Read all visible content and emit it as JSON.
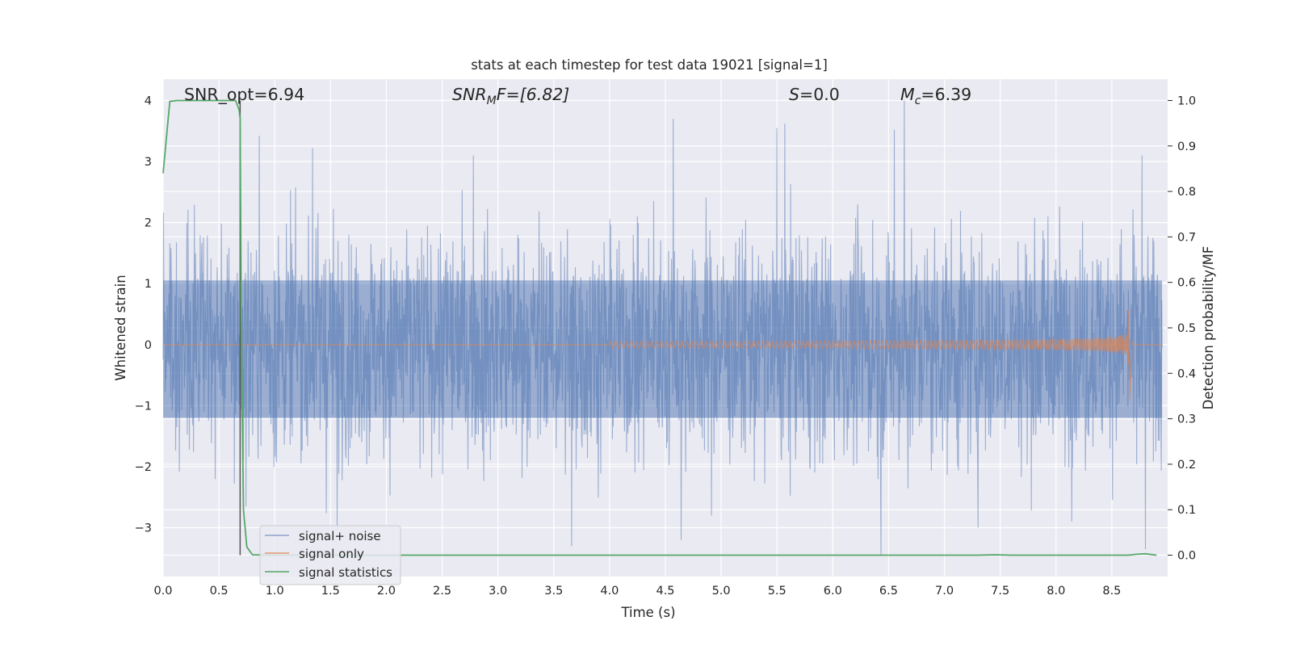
{
  "chart_data": {
    "type": "line",
    "title": "stats at each timestep for test data 19021 [signal=1]",
    "xlabel": "Time (s)",
    "ylabel": "Whitened strain",
    "ylabel_right": "Detection probability/MF",
    "xlim": [
      0.0,
      9.0
    ],
    "ylim": [
      -3.8,
      4.35
    ],
    "ylim_right": [
      -0.047,
      1.047
    ],
    "x_ticks": [
      0.0,
      0.5,
      1.0,
      1.5,
      2.0,
      2.5,
      3.0,
      3.5,
      4.0,
      4.5,
      5.0,
      5.5,
      6.0,
      6.5,
      7.0,
      7.5,
      8.0,
      8.5
    ],
    "x_tick_labels": [
      "0.0",
      "0.5",
      "1.0",
      "1.5",
      "2.0",
      "2.5",
      "3.0",
      "3.5",
      "4.0",
      "4.5",
      "5.0",
      "5.5",
      "6.0",
      "6.5",
      "7.0",
      "7.5",
      "8.0",
      "8.5"
    ],
    "y_ticks": [
      -3,
      -2,
      -1,
      0,
      1,
      2,
      3,
      4
    ],
    "y_tick_labels": [
      "−3",
      "−2",
      "−1",
      "0",
      "1",
      "2",
      "3",
      "4"
    ],
    "y_right_ticks": [
      0.0,
      0.1,
      0.2,
      0.3,
      0.4,
      0.5,
      0.6,
      0.7,
      0.8,
      0.9,
      1.0
    ],
    "y_right_tick_labels": [
      "0.0",
      "0.1",
      "0.2",
      "0.3",
      "0.4",
      "0.5",
      "0.6",
      "0.7",
      "0.8",
      "0.9",
      "1.0"
    ],
    "annotations": {
      "snr_opt": "SNR_opt=6.94",
      "snr_mf_base": "SNR",
      "snr_mf_sub": "M",
      "snr_mf_rest": "F=[6.82]",
      "s_base": "S",
      "s_rest": "=0.0",
      "mc_base": "M",
      "mc_sub": "c",
      "mc_rest": "=6.39"
    },
    "vline_x": 0.69,
    "series": [
      {
        "name": "signal+ noise",
        "color": "#4c72b0",
        "kind": "noise",
        "typical_amplitude": 1.1,
        "max": 4.0,
        "min": -3.55,
        "spikes": [
          {
            "x": 0.86,
            "y": 3.42
          },
          {
            "x": 1.34,
            "y": 3.22
          },
          {
            "x": 2.78,
            "y": 3.1
          },
          {
            "x": 4.57,
            "y": 3.7
          },
          {
            "x": 5.5,
            "y": 3.55
          },
          {
            "x": 5.57,
            "y": 3.62
          },
          {
            "x": 6.55,
            "y": 3.52
          },
          {
            "x": 6.64,
            "y": 4.0
          },
          {
            "x": 8.77,
            "y": 3.1
          },
          {
            "x": 3.66,
            "y": -3.3
          },
          {
            "x": 6.43,
            "y": -3.45
          },
          {
            "x": 8.8,
            "y": -3.35
          },
          {
            "x": 4.64,
            "y": -3.2
          },
          {
            "x": 1.56,
            "y": -3.05
          },
          {
            "x": 7.3,
            "y": -3.0
          }
        ]
      },
      {
        "name": "signal only",
        "color": "#dd8452",
        "kind": "chirp",
        "onset_x": 4.0,
        "merger_x": 8.65,
        "peak_up": 0.58,
        "peak_down": -0.9
      },
      {
        "name": "signal statistics",
        "color": "#55a868",
        "axis": "right",
        "x": [
          0.0,
          0.06,
          0.12,
          0.3,
          0.5,
          0.6,
          0.65,
          0.68,
          0.69,
          0.7,
          0.72,
          0.75,
          0.8,
          1.0,
          2.0,
          3.0,
          4.0,
          5.0,
          6.0,
          7.0,
          7.3,
          7.45,
          7.6,
          8.0,
          8.5,
          8.65,
          8.72,
          8.8,
          8.9
        ],
        "y": [
          0.84,
          0.998,
          1.0,
          1.0,
          1.0,
          1.0,
          1.0,
          0.98,
          0.96,
          0.5,
          0.1,
          0.018,
          0.001,
          0.0,
          0.0,
          0.0,
          0.0,
          0.0,
          0.0,
          0.0,
          0.0,
          0.001,
          0.0,
          0.0,
          0.0,
          0.0,
          0.002,
          0.003,
          0.0
        ]
      }
    ],
    "legend": {
      "placement": "lower-left",
      "entries": [
        "signal+ noise",
        "signal only",
        "signal statistics"
      ]
    },
    "grid": true
  },
  "colors": {
    "axes_bg": "#eaeaf2",
    "grid": "#ffffff",
    "noise": "#4c72b0",
    "signal": "#dd8452",
    "stats": "#55a868",
    "vline": "#555555"
  }
}
